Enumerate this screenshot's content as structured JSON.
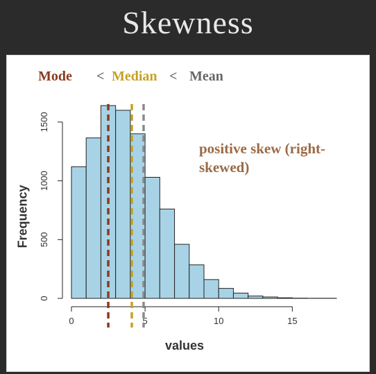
{
  "page": {
    "title": "Skewness"
  },
  "legend": {
    "mode": "Mode",
    "sep1": "<",
    "median": "Median",
    "sep2": "<",
    "mean": "Mean"
  },
  "annotation": "positive skew (right-skewed)",
  "colors": {
    "bar_fill": "#a8d3e6",
    "mode": "#8b3a1e",
    "median": "#c5a126",
    "mean": "#8a8a8a"
  },
  "chart_data": {
    "type": "bar",
    "xlabel": "values",
    "ylabel": "Frequency",
    "bin_width": 1,
    "bin_starts": [
      0,
      1,
      2,
      3,
      4,
      5,
      6,
      7,
      8,
      9,
      10,
      11,
      12,
      13,
      14,
      15,
      16,
      17
    ],
    "values": [
      1120,
      1365,
      1640,
      1600,
      1400,
      1030,
      760,
      460,
      285,
      160,
      85,
      45,
      20,
      12,
      5,
      2,
      1,
      1
    ],
    "xlim": [
      0,
      18
    ],
    "ylim": [
      0,
      1700
    ],
    "xticks": [
      0,
      5,
      10,
      15
    ],
    "yticks": [
      0,
      500,
      1000,
      1500
    ],
    "reference_lines": [
      {
        "name": "Mode",
        "x": 2.5,
        "color": "#8b3a1e"
      },
      {
        "name": "Median",
        "x": 4.1,
        "color": "#c5a126"
      },
      {
        "name": "Mean",
        "x": 4.9,
        "color": "#8a8a8a"
      }
    ],
    "grid": false
  }
}
